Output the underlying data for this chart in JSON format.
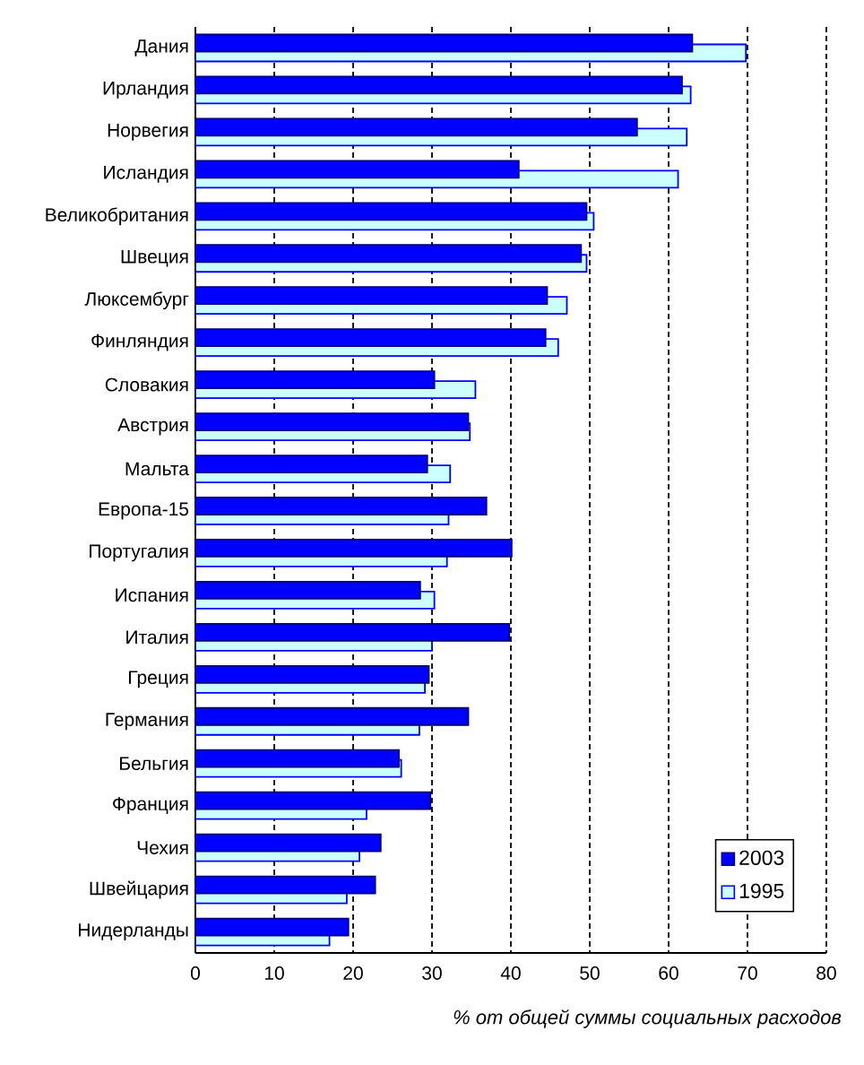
{
  "chart_data": {
    "type": "bar",
    "orientation": "horizontal",
    "categories": [
      "Дания",
      "Ирландия",
      "Норвегия",
      "Исландия",
      "Великобритания",
      "Швеция",
      "Люксембург",
      "Финляндия",
      "Словакия",
      "Австрия",
      "Мальта",
      "Европа-15",
      "Португалия",
      "Испания",
      "Италия",
      "Греция",
      "Германия",
      "Бельгия",
      "Франция",
      "Чехия",
      "Швейцария",
      "Нидерланды"
    ],
    "series": [
      {
        "name": "2003",
        "color": "#0000ff",
        "values": [
          63.0,
          61.7,
          56.0,
          41.0,
          49.6,
          48.9,
          44.6,
          44.4,
          30.3,
          34.6,
          29.4,
          36.9,
          40.1,
          28.5,
          39.8,
          29.6,
          34.6,
          25.8,
          29.8,
          23.5,
          22.8,
          19.4
        ]
      },
      {
        "name": "1995",
        "color": "#ccffff",
        "values": [
          69.8,
          62.8,
          62.3,
          61.2,
          50.5,
          49.6,
          47.1,
          46.0,
          35.5,
          34.8,
          32.3,
          32.1,
          31.9,
          30.3,
          30.0,
          29.1,
          28.4,
          26.1,
          21.7,
          20.8,
          19.2,
          17.0
        ]
      }
    ],
    "xlabel": "% от общей суммы социальных расходов",
    "xlim": [
      0,
      80
    ],
    "xticks": [
      0,
      10,
      20,
      30,
      40,
      50,
      60,
      70,
      80
    ],
    "grid": "x",
    "legend": "bottom right"
  }
}
